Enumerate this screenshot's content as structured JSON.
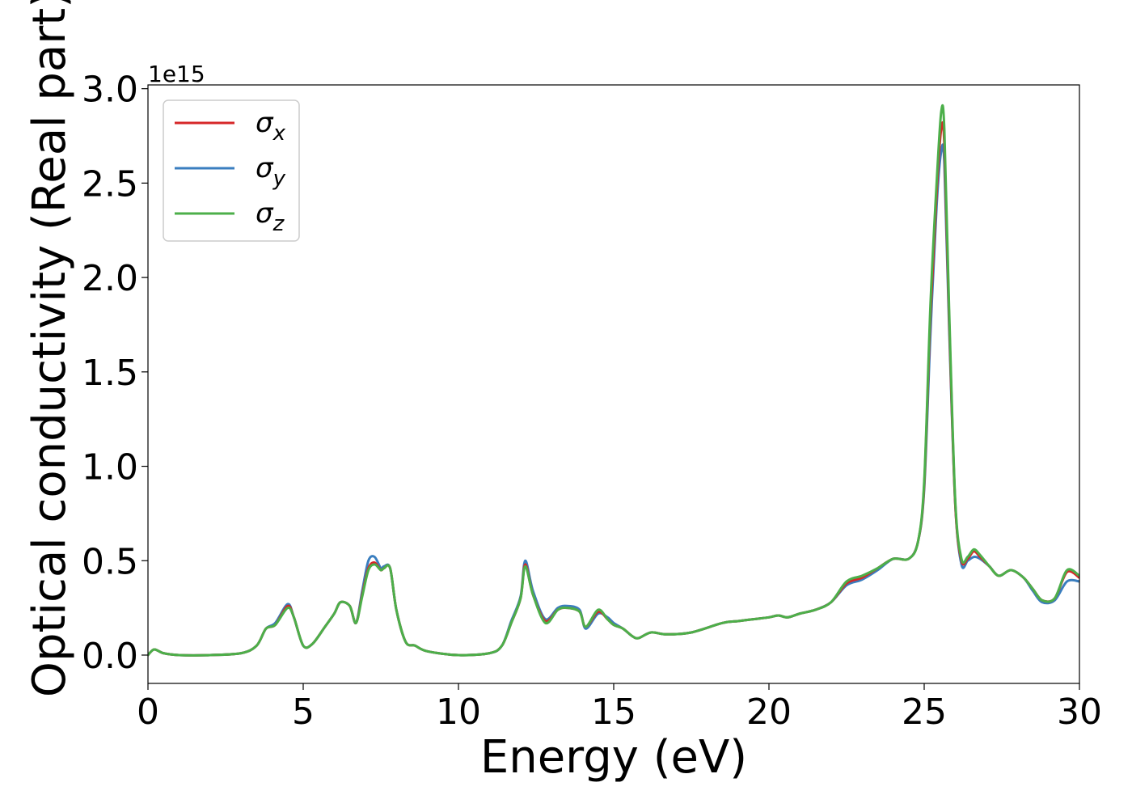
{
  "chart_data": {
    "type": "line",
    "title": "",
    "xlabel": "Energy (eV)",
    "ylabel": "Optical conductivity (Real part)",
    "y_offset_label": "1e15",
    "xlim": [
      0,
      30
    ],
    "ylim": [
      -0.15,
      3.02
    ],
    "y_scale_note": "values in units of 1e15",
    "x_ticks": [
      0,
      5,
      10,
      15,
      20,
      25,
      30
    ],
    "x_tick_labels": [
      "0",
      "5",
      "10",
      "15",
      "20",
      "25",
      "30"
    ],
    "y_ticks": [
      0.0,
      0.5,
      1.0,
      1.5,
      2.0,
      2.5,
      3.0
    ],
    "y_tick_labels": [
      "0.0",
      "0.5",
      "1.0",
      "1.5",
      "2.0",
      "2.5",
      "3.0"
    ],
    "grid": false,
    "legend_position": "top-left",
    "x": [
      0,
      0.2,
      0.5,
      1,
      2,
      3,
      3.5,
      3.8,
      4.1,
      4.5,
      4.7,
      5,
      5.3,
      5.7,
      6,
      6.2,
      6.5,
      6.7,
      6.9,
      7.1,
      7.3,
      7.5,
      7.6,
      7.8,
      8,
      8.3,
      8.6,
      9,
      10,
      11,
      11.4,
      11.7,
      12,
      12.15,
      12.4,
      12.8,
      13.2,
      13.5,
      13.9,
      14.1,
      14.5,
      14.8,
      15,
      15.3,
      15.6,
      15.8,
      16.2,
      16.7,
      17.5,
      18.5,
      19,
      19.5,
      20,
      20.3,
      20.6,
      21,
      21.5,
      22,
      22.5,
      23,
      23.5,
      24,
      24.5,
      24.8,
      25,
      25.2,
      25.4,
      25.55,
      25.65,
      25.8,
      26,
      26.2,
      26.4,
      26.6,
      26.8,
      27.1,
      27.4,
      27.8,
      28.2,
      28.5,
      28.8,
      29.2,
      29.6,
      30
    ],
    "series": [
      {
        "name": "σx",
        "color": "#d62728",
        "values": [
          0.0,
          0.03,
          0.01,
          0.0,
          0.0,
          0.01,
          0.05,
          0.14,
          0.16,
          0.26,
          0.2,
          0.05,
          0.06,
          0.15,
          0.22,
          0.28,
          0.26,
          0.17,
          0.32,
          0.46,
          0.49,
          0.45,
          0.46,
          0.46,
          0.24,
          0.07,
          0.05,
          0.02,
          0.0,
          0.01,
          0.05,
          0.17,
          0.3,
          0.48,
          0.32,
          0.18,
          0.24,
          0.25,
          0.23,
          0.15,
          0.23,
          0.19,
          0.16,
          0.14,
          0.1,
          0.09,
          0.12,
          0.11,
          0.12,
          0.17,
          0.18,
          0.19,
          0.2,
          0.21,
          0.2,
          0.22,
          0.24,
          0.28,
          0.38,
          0.41,
          0.46,
          0.51,
          0.51,
          0.6,
          0.9,
          1.8,
          2.45,
          2.79,
          2.7,
          1.8,
          0.8,
          0.5,
          0.51,
          0.55,
          0.52,
          0.47,
          0.42,
          0.45,
          0.41,
          0.35,
          0.29,
          0.3,
          0.44,
          0.41
        ]
      },
      {
        "name": "σy",
        "color": "#3a7ebf",
        "values": [
          0.0,
          0.03,
          0.01,
          0.0,
          0.0,
          0.01,
          0.05,
          0.14,
          0.17,
          0.27,
          0.2,
          0.05,
          0.06,
          0.15,
          0.22,
          0.28,
          0.26,
          0.17,
          0.34,
          0.5,
          0.52,
          0.46,
          0.47,
          0.46,
          0.24,
          0.07,
          0.05,
          0.02,
          0.0,
          0.01,
          0.05,
          0.18,
          0.31,
          0.5,
          0.34,
          0.19,
          0.25,
          0.26,
          0.24,
          0.14,
          0.22,
          0.2,
          0.17,
          0.14,
          0.1,
          0.09,
          0.12,
          0.11,
          0.12,
          0.17,
          0.18,
          0.19,
          0.2,
          0.21,
          0.2,
          0.22,
          0.24,
          0.28,
          0.37,
          0.4,
          0.45,
          0.51,
          0.51,
          0.6,
          0.88,
          1.7,
          2.38,
          2.67,
          2.6,
          1.75,
          0.8,
          0.48,
          0.5,
          0.52,
          0.51,
          0.47,
          0.42,
          0.45,
          0.41,
          0.34,
          0.28,
          0.29,
          0.39,
          0.39
        ]
      },
      {
        "name": "σz",
        "color": "#4caf4a",
        "values": [
          0.0,
          0.03,
          0.01,
          0.0,
          0.0,
          0.01,
          0.05,
          0.14,
          0.16,
          0.25,
          0.2,
          0.05,
          0.06,
          0.15,
          0.22,
          0.28,
          0.26,
          0.17,
          0.31,
          0.45,
          0.48,
          0.45,
          0.46,
          0.46,
          0.24,
          0.07,
          0.05,
          0.02,
          0.0,
          0.01,
          0.05,
          0.17,
          0.3,
          0.47,
          0.32,
          0.17,
          0.24,
          0.25,
          0.23,
          0.15,
          0.24,
          0.19,
          0.16,
          0.14,
          0.1,
          0.09,
          0.12,
          0.11,
          0.12,
          0.17,
          0.18,
          0.19,
          0.2,
          0.21,
          0.2,
          0.22,
          0.24,
          0.28,
          0.39,
          0.42,
          0.46,
          0.51,
          0.51,
          0.6,
          0.92,
          1.85,
          2.5,
          2.88,
          2.78,
          1.85,
          0.82,
          0.51,
          0.52,
          0.56,
          0.53,
          0.47,
          0.42,
          0.45,
          0.41,
          0.35,
          0.29,
          0.3,
          0.45,
          0.42
        ]
      }
    ]
  }
}
